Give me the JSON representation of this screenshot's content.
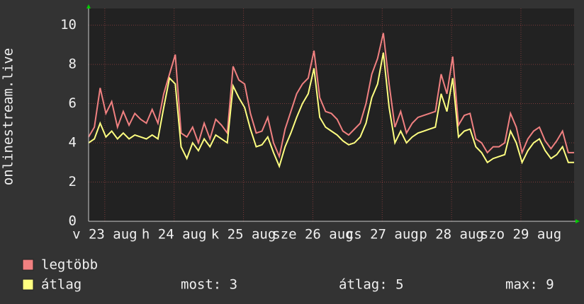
{
  "chart_data": {
    "type": "line",
    "y_label": "onlinestream.live",
    "x": [
      0,
      2,
      4,
      6,
      8,
      10,
      12,
      14,
      16,
      18,
      20,
      22,
      24,
      26,
      28,
      30,
      32,
      34,
      36,
      38,
      40,
      42,
      44,
      46,
      48,
      50,
      52,
      54,
      56,
      58,
      60,
      62,
      64,
      66,
      68,
      70,
      72,
      74,
      76,
      78,
      80,
      82,
      84,
      86,
      88,
      90,
      92,
      94,
      96,
      98,
      100,
      102,
      104,
      106,
      108,
      110,
      112,
      114,
      116,
      118,
      120,
      122,
      124,
      126,
      128,
      130,
      132,
      134,
      136,
      138,
      140,
      142,
      144,
      146,
      148,
      150,
      152,
      154,
      156,
      158,
      160,
      162,
      164,
      166,
      168
    ],
    "series": [
      {
        "name": "legtöbb",
        "color": "#f08080",
        "values": [
          4.3,
          4.8,
          6.8,
          5.5,
          6.1,
          4.8,
          5.6,
          4.9,
          5.5,
          5.2,
          5.0,
          5.7,
          5.0,
          6.5,
          7.5,
          8.5,
          4.5,
          4.3,
          4.8,
          4.0,
          5.0,
          4.2,
          5.2,
          4.9,
          4.5,
          7.9,
          7.2,
          7.0,
          5.5,
          4.5,
          4.6,
          5.3,
          4.0,
          3.3,
          4.7,
          5.6,
          6.5,
          7.0,
          7.3,
          8.7,
          6.3,
          5.6,
          5.5,
          5.2,
          4.6,
          4.4,
          4.7,
          5.0,
          6.0,
          7.5,
          8.3,
          9.6,
          7.0,
          4.8,
          5.6,
          4.5,
          5.0,
          5.3,
          5.4,
          5.5,
          5.6,
          7.5,
          6.5,
          8.4,
          4.9,
          5.4,
          5.5,
          4.2,
          4.0,
          3.5,
          3.8,
          3.8,
          4.0,
          5.5,
          4.8,
          3.5,
          4.2,
          4.6,
          4.8,
          4.1,
          3.7,
          4.1,
          4.6,
          3.5,
          3.5
        ]
      },
      {
        "name": "átlag",
        "color": "#ffff80",
        "values": [
          4.0,
          4.2,
          5.0,
          4.3,
          4.6,
          4.2,
          4.5,
          4.2,
          4.4,
          4.3,
          4.2,
          4.4,
          4.2,
          5.8,
          7.3,
          7.0,
          3.8,
          3.2,
          4.0,
          3.6,
          4.2,
          3.8,
          4.4,
          4.2,
          4.0,
          6.9,
          6.3,
          5.8,
          4.7,
          3.8,
          3.9,
          4.3,
          3.5,
          2.8,
          3.8,
          4.5,
          5.3,
          6.0,
          6.5,
          7.8,
          5.3,
          4.8,
          4.6,
          4.4,
          4.1,
          3.9,
          4.0,
          4.3,
          5.0,
          6.3,
          7.0,
          8.6,
          5.8,
          4.0,
          4.6,
          4.0,
          4.3,
          4.5,
          4.6,
          4.7,
          4.8,
          6.5,
          5.6,
          7.3,
          4.3,
          4.6,
          4.7,
          3.8,
          3.5,
          3.0,
          3.2,
          3.3,
          3.4,
          4.6,
          4.0,
          3.0,
          3.6,
          4.0,
          4.2,
          3.6,
          3.2,
          3.4,
          3.8,
          3.0,
          3.0
        ]
      }
    ],
    "xlim": [
      0,
      168
    ],
    "xticks": [
      {
        "value": 5.6,
        "label": "v 23 aug"
      },
      {
        "value": 29.6,
        "label": "h 24 aug"
      },
      {
        "value": 53.6,
        "label": "k 25 aug"
      },
      {
        "value": 77.6,
        "label": "sze 26 aug"
      },
      {
        "value": 101.6,
        "label": "cs 27 aug"
      },
      {
        "value": 125.6,
        "label": "p 28 aug"
      },
      {
        "value": 149.6,
        "label": "szo 29 aug"
      }
    ],
    "ylim": [
      0,
      10.85
    ],
    "yticks": [
      0,
      2,
      4,
      6,
      8,
      10
    ],
    "grid": true,
    "stats": [
      "most: 3",
      "átlag: 5",
      "max: 9"
    ]
  }
}
